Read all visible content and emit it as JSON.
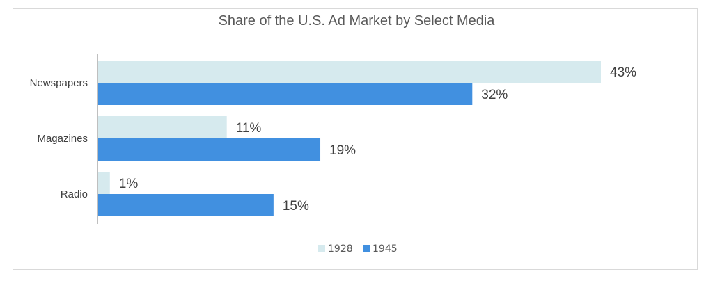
{
  "chart_data": {
    "type": "bar",
    "orientation": "horizontal",
    "title": "Share of the U.S. Ad Market by Select Media",
    "categories": [
      "Newspapers",
      "Magazines",
      "Radio"
    ],
    "series": [
      {
        "name": "1928",
        "values": [
          43,
          11,
          1
        ],
        "labels": [
          "43%",
          "11%",
          "1%"
        ],
        "color": "#d6eaee"
      },
      {
        "name": "1945",
        "values": [
          32,
          19,
          15
        ],
        "labels": [
          "32%",
          "19%",
          "15%"
        ],
        "color": "#4190e0"
      }
    ],
    "xlim": [
      0,
      43
    ],
    "xlabel": "",
    "ylabel": "",
    "grid": false,
    "legend": "bottom-center"
  }
}
